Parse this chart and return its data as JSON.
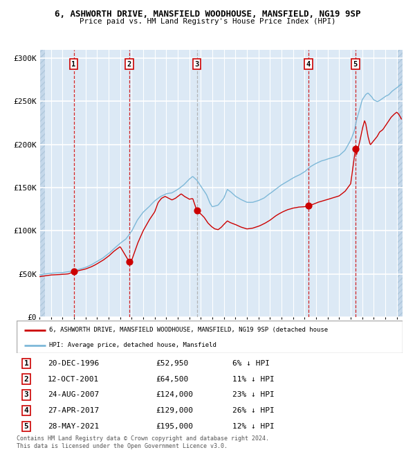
{
  "title1": "6, ASHWORTH DRIVE, MANSFIELD WOODHOUSE, MANSFIELD, NG19 9SP",
  "title2": "Price paid vs. HM Land Registry's House Price Index (HPI)",
  "xlim_start": 1994.0,
  "xlim_end": 2025.5,
  "ylim": [
    0,
    310000
  ],
  "yticks": [
    0,
    50000,
    100000,
    150000,
    200000,
    250000,
    300000
  ],
  "ytick_labels": [
    "£0",
    "£50K",
    "£100K",
    "£150K",
    "£200K",
    "£250K",
    "£300K"
  ],
  "sale_dates_decimal": [
    1996.97,
    2001.79,
    2007.65,
    2017.33,
    2021.41
  ],
  "sale_prices": [
    52950,
    64500,
    124000,
    129000,
    195000
  ],
  "sale_labels": [
    "1",
    "2",
    "3",
    "4",
    "5"
  ],
  "legend_line1": "6, ASHWORTH DRIVE, MANSFIELD WOODHOUSE, MANSFIELD, NG19 9SP (detached house",
  "legend_line2": "HPI: Average price, detached house, Mansfield",
  "table_entries": [
    {
      "label": "1",
      "date": "20-DEC-1996",
      "price": "£52,950",
      "pct": "6% ↓ HPI"
    },
    {
      "label": "2",
      "date": "12-OCT-2001",
      "price": "£64,500",
      "pct": "11% ↓ HPI"
    },
    {
      "label": "3",
      "date": "24-AUG-2007",
      "price": "£124,000",
      "pct": "23% ↓ HPI"
    },
    {
      "label": "4",
      "date": "27-APR-2017",
      "price": "£129,000",
      "pct": "26% ↓ HPI"
    },
    {
      "label": "5",
      "date": "28-MAY-2021",
      "price": "£195,000",
      "pct": "12% ↓ HPI"
    }
  ],
  "footer": "Contains HM Land Registry data © Crown copyright and database right 2024.\nThis data is licensed under the Open Government Licence v3.0.",
  "hpi_color": "#7db8d8",
  "price_color": "#cc0000",
  "bg_color": "#dce9f5",
  "grid_color": "#ffffff",
  "vline_color": "#cc0000",
  "vline3_color": "#aaaaaa",
  "hpi_anchors": [
    [
      1994.0,
      49000
    ],
    [
      1994.5,
      50000
    ],
    [
      1995.0,
      51000
    ],
    [
      1995.5,
      51500
    ],
    [
      1996.0,
      52000
    ],
    [
      1996.5,
      53000
    ],
    [
      1997.0,
      54500
    ],
    [
      1997.5,
      56000
    ],
    [
      1998.0,
      58000
    ],
    [
      1998.5,
      61000
    ],
    [
      1999.0,
      65000
    ],
    [
      1999.5,
      69000
    ],
    [
      2000.0,
      74000
    ],
    [
      2000.5,
      80000
    ],
    [
      2001.0,
      86000
    ],
    [
      2001.5,
      91000
    ],
    [
      2002.0,
      100000
    ],
    [
      2002.5,
      113000
    ],
    [
      2003.0,
      122000
    ],
    [
      2003.5,
      128000
    ],
    [
      2004.0,
      135000
    ],
    [
      2004.5,
      140000
    ],
    [
      2005.0,
      143000
    ],
    [
      2005.5,
      144000
    ],
    [
      2006.0,
      148000
    ],
    [
      2006.5,
      153000
    ],
    [
      2007.0,
      160000
    ],
    [
      2007.3,
      163000
    ],
    [
      2007.7,
      158000
    ],
    [
      2008.0,
      152000
    ],
    [
      2008.5,
      142000
    ],
    [
      2008.8,
      132000
    ],
    [
      2009.0,
      128000
    ],
    [
      2009.5,
      130000
    ],
    [
      2010.0,
      138000
    ],
    [
      2010.3,
      148000
    ],
    [
      2010.6,
      145000
    ],
    [
      2011.0,
      140000
    ],
    [
      2011.5,
      136000
    ],
    [
      2012.0,
      133000
    ],
    [
      2012.5,
      133000
    ],
    [
      2013.0,
      135000
    ],
    [
      2013.5,
      138000
    ],
    [
      2014.0,
      143000
    ],
    [
      2014.5,
      148000
    ],
    [
      2015.0,
      153000
    ],
    [
      2015.5,
      157000
    ],
    [
      2016.0,
      161000
    ],
    [
      2016.5,
      164000
    ],
    [
      2017.0,
      168000
    ],
    [
      2017.5,
      174000
    ],
    [
      2018.0,
      178000
    ],
    [
      2018.5,
      181000
    ],
    [
      2019.0,
      183000
    ],
    [
      2019.5,
      185000
    ],
    [
      2020.0,
      187000
    ],
    [
      2020.5,
      193000
    ],
    [
      2021.0,
      205000
    ],
    [
      2021.3,
      215000
    ],
    [
      2021.5,
      228000
    ],
    [
      2021.8,
      242000
    ],
    [
      2022.0,
      252000
    ],
    [
      2022.3,
      258000
    ],
    [
      2022.5,
      260000
    ],
    [
      2022.8,
      256000
    ],
    [
      2023.0,
      252000
    ],
    [
      2023.3,
      250000
    ],
    [
      2023.5,
      251000
    ],
    [
      2023.8,
      254000
    ],
    [
      2024.0,
      256000
    ],
    [
      2024.3,
      258000
    ],
    [
      2024.6,
      262000
    ],
    [
      2024.9,
      265000
    ],
    [
      2025.2,
      268000
    ],
    [
      2025.4,
      270000
    ]
  ],
  "price_anchors": [
    [
      1994.0,
      47000
    ],
    [
      1994.5,
      48000
    ],
    [
      1995.0,
      49000
    ],
    [
      1995.5,
      49500
    ],
    [
      1996.0,
      50000
    ],
    [
      1996.5,
      50500
    ],
    [
      1996.97,
      52950
    ],
    [
      1997.0,
      53000
    ],
    [
      1997.5,
      54500
    ],
    [
      1998.0,
      56000
    ],
    [
      1998.5,
      58500
    ],
    [
      1999.0,
      62000
    ],
    [
      1999.5,
      66000
    ],
    [
      2000.0,
      71000
    ],
    [
      2000.5,
      77000
    ],
    [
      2001.0,
      82000
    ],
    [
      2001.79,
      64500
    ],
    [
      2002.0,
      66000
    ],
    [
      2002.5,
      85000
    ],
    [
      2003.0,
      100000
    ],
    [
      2003.5,
      112000
    ],
    [
      2004.0,
      122000
    ],
    [
      2004.3,
      133000
    ],
    [
      2004.6,
      138000
    ],
    [
      2004.9,
      140000
    ],
    [
      2005.2,
      138000
    ],
    [
      2005.5,
      136000
    ],
    [
      2005.8,
      138000
    ],
    [
      2006.0,
      140000
    ],
    [
      2006.3,
      143000
    ],
    [
      2006.6,
      140000
    ],
    [
      2006.9,
      138000
    ],
    [
      2007.0,
      137000
    ],
    [
      2007.3,
      138000
    ],
    [
      2007.65,
      124000
    ],
    [
      2007.8,
      122000
    ],
    [
      2008.0,
      120000
    ],
    [
      2008.3,
      116000
    ],
    [
      2008.6,
      110000
    ],
    [
      2008.9,
      106000
    ],
    [
      2009.2,
      103000
    ],
    [
      2009.5,
      102000
    ],
    [
      2009.8,
      105000
    ],
    [
      2010.0,
      108000
    ],
    [
      2010.3,
      112000
    ],
    [
      2010.6,
      110000
    ],
    [
      2011.0,
      108000
    ],
    [
      2011.5,
      105000
    ],
    [
      2012.0,
      103000
    ],
    [
      2012.5,
      104000
    ],
    [
      2013.0,
      106000
    ],
    [
      2013.5,
      109000
    ],
    [
      2014.0,
      113000
    ],
    [
      2014.5,
      118000
    ],
    [
      2015.0,
      122000
    ],
    [
      2015.5,
      125000
    ],
    [
      2016.0,
      127000
    ],
    [
      2016.5,
      128000
    ],
    [
      2017.0,
      128500
    ],
    [
      2017.33,
      129000
    ],
    [
      2017.5,
      130000
    ],
    [
      2018.0,
      133000
    ],
    [
      2018.5,
      135000
    ],
    [
      2019.0,
      137000
    ],
    [
      2019.5,
      139000
    ],
    [
      2020.0,
      141000
    ],
    [
      2020.5,
      146000
    ],
    [
      2021.0,
      155000
    ],
    [
      2021.41,
      195000
    ],
    [
      2021.5,
      188000
    ],
    [
      2021.8,
      205000
    ],
    [
      2022.0,
      218000
    ],
    [
      2022.2,
      228000
    ],
    [
      2022.3,
      225000
    ],
    [
      2022.5,
      210000
    ],
    [
      2022.7,
      200000
    ],
    [
      2023.0,
      205000
    ],
    [
      2023.3,
      210000
    ],
    [
      2023.5,
      215000
    ],
    [
      2023.8,
      218000
    ],
    [
      2024.0,
      222000
    ],
    [
      2024.3,
      228000
    ],
    [
      2024.5,
      232000
    ],
    [
      2024.8,
      236000
    ],
    [
      2025.0,
      238000
    ],
    [
      2025.2,
      235000
    ],
    [
      2025.4,
      230000
    ]
  ]
}
